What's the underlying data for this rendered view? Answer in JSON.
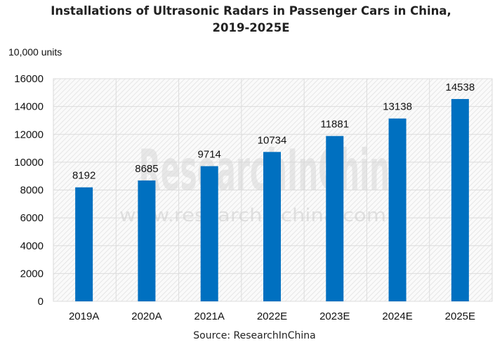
{
  "chart_data": {
    "type": "bar",
    "title": "Installations of Ultrasonic Radars in Passenger Cars in China, 2019-2025E",
    "title_lines": [
      "Installations of Ultrasonic Radars in Passenger Cars in China,",
      "2019-2025E"
    ],
    "ylabel": "10,000 units",
    "xlabel": "",
    "categories": [
      "2019A",
      "2020A",
      "2021A",
      "2022E",
      "2023E",
      "2024E",
      "2025E"
    ],
    "values": [
      8192,
      8685,
      9714,
      10734,
      11881,
      13138,
      14538
    ],
    "ylim": [
      0,
      16000
    ],
    "yticks": [
      0,
      2000,
      4000,
      6000,
      8000,
      10000,
      12000,
      14000,
      16000
    ],
    "grid": true,
    "legend": "none",
    "bar_color": "#0070C0",
    "source": "Source: ResearchInChina",
    "watermark": [
      "ResearchInChina",
      "www.researchinchina.com"
    ]
  }
}
